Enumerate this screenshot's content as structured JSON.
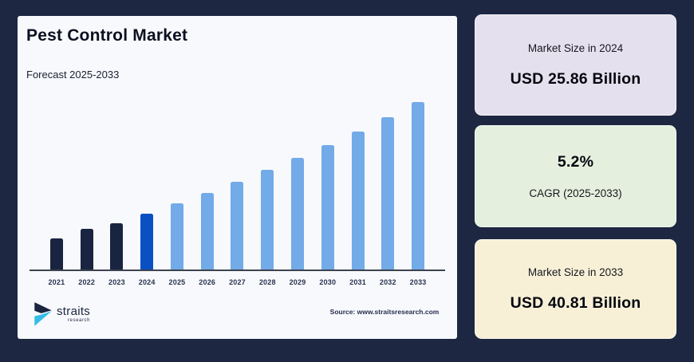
{
  "theme": {
    "background": "#1d2742",
    "card_bg": "#f7f9fc",
    "axis_color": "#3d4350",
    "panel_bg": [
      "#e5e0ee",
      "#e4efde",
      "#f7f0d7"
    ],
    "logo_navy": "#1b2540",
    "logo_cyan": "#35bde4"
  },
  "chart_card": {
    "title": "Pest Control Market",
    "subtitle": "Forecast 2025-2033",
    "source": "Source: www.straitsresearch.com",
    "logo": {
      "name": "straits",
      "sub": "research"
    }
  },
  "chart_data": {
    "type": "bar",
    "title": "Pest Control Market",
    "unit": "USD Billion",
    "categories": [
      "2021",
      "2022",
      "2023",
      "2024",
      "2025",
      "2026",
      "2027",
      "2028",
      "2029",
      "2030",
      "2031",
      "2032",
      "2033"
    ],
    "values": [
      22.6,
      23.8,
      24.6,
      25.86,
      27.21,
      28.62,
      30.11,
      31.68,
      33.32,
      35.06,
      36.88,
      38.8,
      40.81
    ],
    "labeled_points": {
      "2024": "USD 25.86 Billion",
      "2033": "USD 40.81 Billion"
    },
    "cagr": "5.2% (2025-2033)",
    "ylim": [
      18.4,
      41.0
    ],
    "grid": false,
    "legend": false,
    "colors": {
      "historical": "#192440",
      "current": "#0a50c3",
      "forecast": "#73aae8"
    },
    "color_roles": [
      "historical",
      "historical",
      "historical",
      "current",
      "forecast",
      "forecast",
      "forecast",
      "forecast",
      "forecast",
      "forecast",
      "forecast",
      "forecast",
      "forecast"
    ]
  },
  "panels": {
    "p1": {
      "label": "Market Size in 2024",
      "value": "USD 25.86 Billion"
    },
    "p2": {
      "value": "5.2%",
      "label": "CAGR (2025-2033)"
    },
    "p3": {
      "label": "Market Size in 2033",
      "value": "USD 40.81 Billion"
    }
  }
}
